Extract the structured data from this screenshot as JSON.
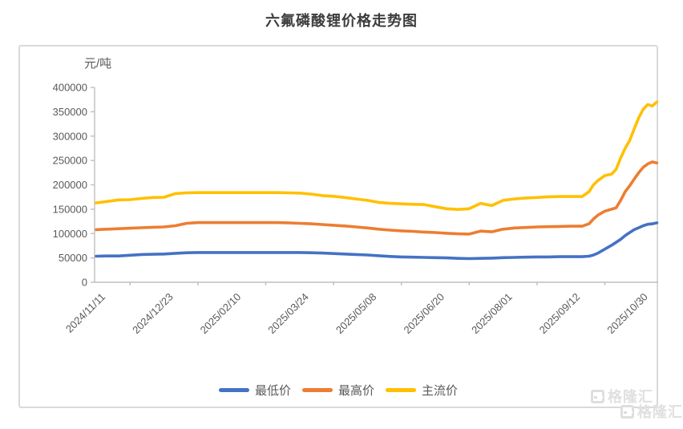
{
  "title": "六氟磷酸锂价格走势图",
  "watermark": {
    "brand": "格隆汇"
  },
  "chart_data": {
    "type": "line",
    "title": "六氟磷酸锂价格走势图",
    "unit_label": "元/吨",
    "grid": "off",
    "legend_position": "bottom",
    "y_axis": {
      "min": 0,
      "max": 400000,
      "tick_step": 50000,
      "tick_values": [
        0,
        50000,
        100000,
        150000,
        200000,
        250000,
        300000,
        350000,
        400000
      ],
      "tick_labels": [
        "0",
        "50000",
        "100000",
        "150000",
        "200000",
        "250000",
        "300000",
        "350000",
        "400000"
      ]
    },
    "x_axis": {
      "unit": "working-day index from 2024/11/11 (daily price quotes)",
      "tick_labels": [
        "2024/11/11",
        "2024/12/23",
        "2025/02/10",
        "2025/03/24",
        "2025/05/08",
        "2025/06/20",
        "2025/08/01",
        "2025/09/12",
        "2025/10/30"
      ],
      "tick_label_positions": [
        0,
        30,
        60,
        90,
        120,
        150,
        180,
        210,
        240
      ],
      "minor_tick_positions": [
        15,
        45,
        75,
        105,
        135,
        165,
        195,
        225
      ]
    },
    "x": [
      0,
      5,
      10,
      15,
      20,
      25,
      30,
      35,
      40,
      45,
      50,
      55,
      60,
      65,
      70,
      75,
      80,
      85,
      90,
      95,
      100,
      105,
      110,
      115,
      120,
      125,
      130,
      135,
      140,
      145,
      150,
      155,
      160,
      165,
      170,
      175,
      180,
      185,
      190,
      195,
      200,
      205,
      210,
      215,
      218,
      220,
      222,
      225,
      228,
      230,
      232,
      234,
      236,
      238,
      240,
      242,
      244,
      246,
      248
    ],
    "series": [
      {
        "name": "最低价",
        "color": "#4472C4",
        "values": [
          53500,
          54000,
          54000,
          55500,
          57000,
          57500,
          58000,
          59500,
          60500,
          61000,
          61000,
          61000,
          61000,
          61000,
          61000,
          61000,
          61000,
          61000,
          61000,
          60500,
          60000,
          59000,
          58000,
          57000,
          56000,
          54500,
          53000,
          52000,
          51500,
          51000,
          50500,
          50000,
          49000,
          48500,
          49000,
          49500,
          50500,
          51000,
          51500,
          52000,
          52000,
          52500,
          52500,
          52500,
          53500,
          56000,
          60000,
          68000,
          76000,
          82000,
          88000,
          96000,
          102000,
          108000,
          112000,
          116000,
          119000,
          120000,
          122000
        ]
      },
      {
        "name": "最高价",
        "color": "#ED7D31",
        "values": [
          108000,
          109000,
          110000,
          111000,
          112000,
          113000,
          113500,
          116000,
          121000,
          122500,
          122500,
          122500,
          122500,
          122500,
          122500,
          122500,
          122500,
          122000,
          121000,
          120000,
          118500,
          117000,
          115500,
          113500,
          111500,
          109000,
          107000,
          105500,
          104500,
          103000,
          102000,
          100500,
          99500,
          99000,
          105000,
          103500,
          109000,
          111500,
          112500,
          113500,
          114000,
          114500,
          115000,
          115000,
          120000,
          130000,
          138000,
          146000,
          150000,
          153000,
          168000,
          186000,
          198000,
          212000,
          225000,
          236000,
          243000,
          247000,
          245000
        ]
      },
      {
        "name": "主流价",
        "color": "#FFC000",
        "values": [
          163000,
          166000,
          169000,
          169500,
          172000,
          174000,
          174500,
          182000,
          183500,
          184000,
          184000,
          184000,
          184000,
          184000,
          184000,
          184000,
          184000,
          183500,
          183000,
          181000,
          178000,
          176500,
          174000,
          171000,
          168000,
          164000,
          162000,
          161000,
          160000,
          159500,
          155000,
          151000,
          149500,
          151000,
          162000,
          157500,
          168000,
          171000,
          173000,
          174000,
          175500,
          176000,
          176000,
          176000,
          186000,
          200000,
          209000,
          219000,
          222000,
          232000,
          255000,
          275000,
          291000,
          315000,
          338000,
          355000,
          365000,
          362000,
          370000
        ]
      }
    ]
  }
}
